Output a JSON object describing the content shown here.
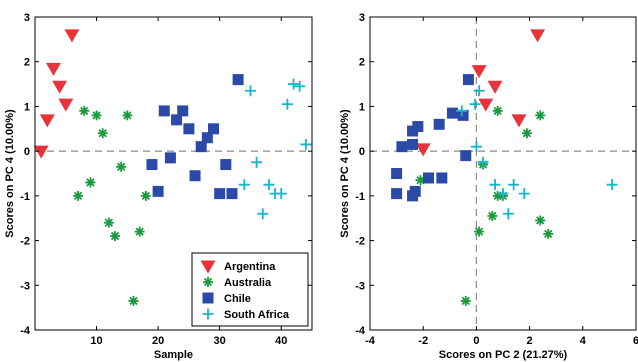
{
  "chart_data": [
    {
      "type": "scatter",
      "xlabel": "Sample",
      "ylabel": "Scores on PC 4 (10.00%)",
      "xlim": [
        0,
        45
      ],
      "ylim": [
        -4,
        3
      ],
      "xticks": [
        {
          "v": 10,
          "label": "10"
        },
        {
          "v": 20,
          "label": "20"
        },
        {
          "v": 30,
          "label": "30"
        },
        {
          "v": 40,
          "label": "40"
        }
      ],
      "yticks": [
        {
          "v": 3,
          "label": "3"
        },
        {
          "v": 2,
          "label": "2"
        },
        {
          "v": 1,
          "label": "1"
        },
        {
          "v": 0,
          "label": "0"
        },
        {
          "v": -1,
          "label": "-1"
        },
        {
          "v": -2,
          "label": "-2"
        },
        {
          "v": -3,
          "label": "-3"
        },
        {
          "v": -4,
          "label": "-4"
        }
      ],
      "reference_lines": {
        "y": 0
      },
      "legend": {
        "placement": "bottom-right"
      },
      "series": [
        {
          "name": "Argentina",
          "marker": "triangle-down",
          "color": "#e8333a",
          "points": [
            [
              1,
              0
            ],
            [
              2,
              0.7
            ],
            [
              3,
              1.85
            ],
            [
              4,
              1.45
            ],
            [
              5,
              1.05
            ],
            [
              6,
              2.6
            ]
          ]
        },
        {
          "name": "Australia",
          "marker": "star",
          "color": "#1a9a3c",
          "points": [
            [
              7,
              -1.0
            ],
            [
              8,
              0.9
            ],
            [
              9,
              -0.7
            ],
            [
              10,
              0.8
            ],
            [
              11,
              0.4
            ],
            [
              12,
              -1.6
            ],
            [
              13,
              -1.9
            ],
            [
              14,
              -0.35
            ],
            [
              15,
              0.8
            ],
            [
              16,
              -3.35
            ],
            [
              17,
              -1.8
            ],
            [
              18,
              -1.0
            ]
          ]
        },
        {
          "name": "Chile",
          "marker": "square",
          "color": "#2b4aa8",
          "points": [
            [
              19,
              -0.3
            ],
            [
              20,
              -0.9
            ],
            [
              21,
              0.9
            ],
            [
              22,
              -0.15
            ],
            [
              23,
              0.7
            ],
            [
              24,
              0.9
            ],
            [
              25,
              0.5
            ],
            [
              26,
              -0.55
            ],
            [
              27,
              0.1
            ],
            [
              28,
              0.3
            ],
            [
              29,
              0.5
            ],
            [
              30,
              -0.95
            ],
            [
              31,
              -0.3
            ],
            [
              32,
              -0.95
            ],
            [
              33,
              1.6
            ]
          ]
        },
        {
          "name": "South Africa",
          "marker": "plus",
          "color": "#18b4cc",
          "points": [
            [
              34,
              -0.75
            ],
            [
              35,
              1.35
            ],
            [
              36,
              -0.25
            ],
            [
              37,
              -1.4
            ],
            [
              38,
              -0.75
            ],
            [
              39,
              -0.95
            ],
            [
              40,
              -0.95
            ],
            [
              41,
              1.05
            ],
            [
              42,
              1.5
            ],
            [
              43,
              1.45
            ],
            [
              44,
              0.15
            ]
          ]
        }
      ]
    },
    {
      "type": "scatter",
      "xlabel": "Scores on PC 2 (21.27%)",
      "ylabel": "Scores on PC 4 (10.00%)",
      "xlim": [
        -4,
        6
      ],
      "ylim": [
        -4,
        3
      ],
      "xticks": [
        {
          "v": -4,
          "label": "-4"
        },
        {
          "v": -2,
          "label": "-2"
        },
        {
          "v": 0,
          "label": "0"
        },
        {
          "v": 2,
          "label": "2"
        },
        {
          "v": 4,
          "label": "4"
        },
        {
          "v": 6,
          "label": "6"
        }
      ],
      "yticks": [
        {
          "v": 3,
          "label": "3"
        },
        {
          "v": 2,
          "label": "2"
        },
        {
          "v": 1,
          "label": "1"
        },
        {
          "v": 0,
          "label": "0"
        },
        {
          "v": -1,
          "label": "-1"
        },
        {
          "v": -2,
          "label": "-2"
        },
        {
          "v": -3,
          "label": "-3"
        },
        {
          "v": -4,
          "label": "-4"
        }
      ],
      "reference_lines": {
        "x": 0,
        "y": 0
      },
      "series": [
        {
          "name": "Argentina",
          "marker": "triangle-down",
          "color": "#e8333a",
          "points": [
            [
              -2.0,
              0.05
            ],
            [
              0.1,
              1.8
            ],
            [
              0.35,
              1.05
            ],
            [
              0.7,
              1.45
            ],
            [
              1.6,
              0.7
            ],
            [
              2.3,
              2.6
            ]
          ]
        },
        {
          "name": "Australia",
          "marker": "star",
          "color": "#1a9a3c",
          "points": [
            [
              -2.1,
              -0.65
            ],
            [
              -0.4,
              -3.35
            ],
            [
              0.1,
              -1.8
            ],
            [
              0.25,
              -0.3
            ],
            [
              0.6,
              -1.45
            ],
            [
              0.8,
              0.9
            ],
            [
              0.8,
              -1.0
            ],
            [
              1.0,
              -1.0
            ],
            [
              1.9,
              0.4
            ],
            [
              2.4,
              0.8
            ],
            [
              2.4,
              -1.55
            ],
            [
              2.7,
              -1.85
            ]
          ]
        },
        {
          "name": "Chile",
          "marker": "square",
          "color": "#2b4aa8",
          "points": [
            [
              -3.0,
              -0.5
            ],
            [
              -3.0,
              -0.95
            ],
            [
              -2.8,
              0.1
            ],
            [
              -2.4,
              0.45
            ],
            [
              -2.4,
              0.15
            ],
            [
              -2.4,
              -1.0
            ],
            [
              -2.3,
              -0.9
            ],
            [
              -2.2,
              0.55
            ],
            [
              -1.8,
              -0.6
            ],
            [
              -1.4,
              0.6
            ],
            [
              -1.3,
              -0.6
            ],
            [
              -0.9,
              0.85
            ],
            [
              -0.5,
              0.8
            ],
            [
              -0.4,
              -0.1
            ],
            [
              -0.3,
              1.6
            ]
          ]
        },
        {
          "name": "South Africa",
          "marker": "plus",
          "color": "#18b4cc",
          "points": [
            [
              -0.55,
              0.9
            ],
            [
              -0.05,
              1.05
            ],
            [
              0.0,
              0.1
            ],
            [
              0.1,
              1.35
            ],
            [
              0.25,
              -0.25
            ],
            [
              0.7,
              -0.75
            ],
            [
              1.0,
              -0.95
            ],
            [
              1.2,
              -1.4
            ],
            [
              1.4,
              -0.75
            ],
            [
              1.8,
              -0.95
            ],
            [
              5.1,
              -0.75
            ]
          ]
        }
      ]
    }
  ]
}
